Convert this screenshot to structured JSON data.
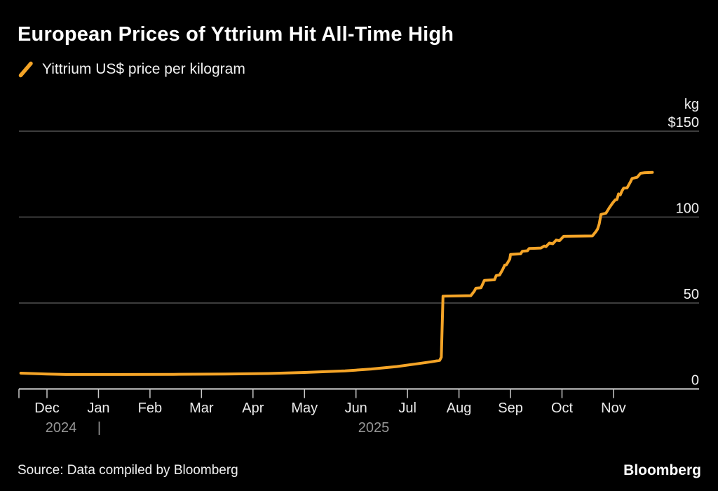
{
  "header": {
    "title": "European Prices of Yttrium Hit All-Time High"
  },
  "legend": {
    "label": "Yittrium US$ price per kilogram",
    "mark": "slash-icon",
    "color": "#F4A427"
  },
  "footer": {
    "source": "Source: Data compiled by Bloomberg",
    "brand": "Bloomberg"
  },
  "chart_data": {
    "type": "line",
    "title": "European Prices of Yttrium Hit All-Time High",
    "xlabel": "",
    "ylabel": "US$ price per kilogram",
    "ylim": [
      0,
      150
    ],
    "grid": "horizontal",
    "x_range": [
      "2024-11-16",
      "2025-11-24"
    ],
    "y_axis": {
      "unit_label": "kg",
      "ticks": [
        {
          "value": 150,
          "label": "$150"
        },
        {
          "value": 100,
          "label": "100"
        },
        {
          "value": 50,
          "label": "50"
        },
        {
          "value": 0,
          "label": "0"
        }
      ]
    },
    "x_axis": {
      "months": [
        "Dec",
        "Jan",
        "Feb",
        "Mar",
        "Apr",
        "May",
        "Jun",
        "Jul",
        "Aug",
        "Sep",
        "Oct",
        "Nov"
      ],
      "years": {
        "left": "2024",
        "divider": "|",
        "right": "2025"
      }
    },
    "series": [
      {
        "name": "Yittrium US$ price per kilogram",
        "color": "#F4A427",
        "points": [
          [
            "2024-11-16",
            9.2
          ],
          [
            "2024-12-01",
            8.7
          ],
          [
            "2024-12-12",
            8.4
          ],
          [
            "2025-01-15",
            8.4
          ],
          [
            "2025-02-15",
            8.5
          ],
          [
            "2025-03-15",
            8.7
          ],
          [
            "2025-04-10",
            9.0
          ],
          [
            "2025-05-01",
            9.6
          ],
          [
            "2025-05-25",
            10.5
          ],
          [
            "2025-06-10",
            11.6
          ],
          [
            "2025-06-25",
            13.0
          ],
          [
            "2025-07-08",
            14.8
          ],
          [
            "2025-07-15",
            15.8
          ],
          [
            "2025-07-20",
            16.6
          ],
          [
            "2025-07-21",
            18.5
          ],
          [
            "2025-07-22",
            54.0
          ],
          [
            "2025-08-08",
            54.3
          ],
          [
            "2025-08-10",
            56.8
          ],
          [
            "2025-08-11",
            58.6
          ],
          [
            "2025-08-14",
            58.9
          ],
          [
            "2025-08-16",
            63.2
          ],
          [
            "2025-08-22",
            63.5
          ],
          [
            "2025-08-23",
            66.0
          ],
          [
            "2025-08-25",
            66.3
          ],
          [
            "2025-08-27",
            69.8
          ],
          [
            "2025-08-28",
            72.0
          ],
          [
            "2025-08-29",
            72.3
          ],
          [
            "2025-08-31",
            75.5
          ],
          [
            "2025-09-01",
            78.3
          ],
          [
            "2025-09-07",
            78.6
          ],
          [
            "2025-09-08",
            80.1
          ],
          [
            "2025-09-11",
            80.4
          ],
          [
            "2025-09-12",
            81.7
          ],
          [
            "2025-09-19",
            82.0
          ],
          [
            "2025-09-21",
            83.2
          ],
          [
            "2025-09-22",
            82.8
          ],
          [
            "2025-09-24",
            84.9
          ],
          [
            "2025-09-26",
            84.5
          ],
          [
            "2025-09-28",
            86.6
          ],
          [
            "2025-09-30",
            86.3
          ],
          [
            "2025-10-02",
            88.8
          ],
          [
            "2025-10-19",
            89.0
          ],
          [
            "2025-10-21",
            91.5
          ],
          [
            "2025-10-22",
            93.0
          ],
          [
            "2025-10-23",
            96.0
          ],
          [
            "2025-10-24",
            101.5
          ],
          [
            "2025-10-27",
            102.3
          ],
          [
            "2025-10-29",
            105.5
          ],
          [
            "2025-10-31",
            108.3
          ],
          [
            "2025-11-02",
            110.0
          ],
          [
            "2025-11-03",
            110.2
          ],
          [
            "2025-11-04",
            113.5
          ],
          [
            "2025-11-05",
            112.9
          ],
          [
            "2025-11-06",
            115.2
          ],
          [
            "2025-11-07",
            116.8
          ],
          [
            "2025-11-09",
            117.0
          ],
          [
            "2025-11-11",
            120.5
          ],
          [
            "2025-11-12",
            122.5
          ],
          [
            "2025-11-15",
            123.2
          ],
          [
            "2025-11-17",
            125.5
          ],
          [
            "2025-11-19",
            125.8
          ],
          [
            "2025-11-24",
            126.0
          ]
        ]
      }
    ]
  }
}
